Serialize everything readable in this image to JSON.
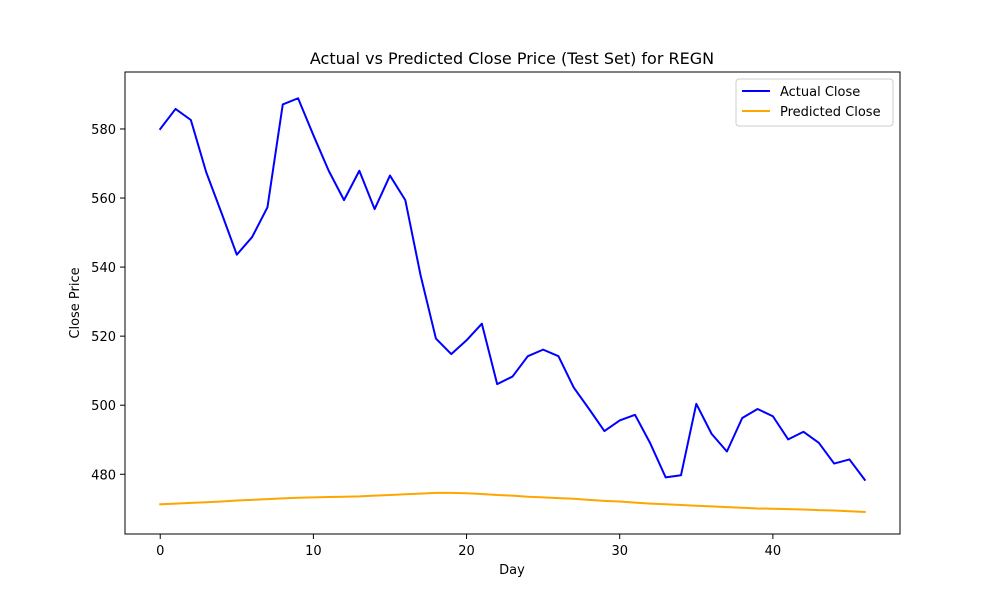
{
  "chart_data": {
    "type": "line",
    "title": "Actual vs Predicted Close Price (Test Set) for REGN",
    "xlabel": "Day",
    "ylabel": "Close Price",
    "xlim": [
      -2.3,
      48.3
    ],
    "ylim": [
      462.7,
      596.5
    ],
    "x_ticks": [
      0,
      10,
      20,
      30,
      40
    ],
    "y_ticks": [
      480,
      500,
      520,
      540,
      560,
      580
    ],
    "grid": false,
    "legend_position": "top-right",
    "x": [
      0,
      1,
      2,
      3,
      4,
      5,
      6,
      7,
      8,
      9,
      10,
      11,
      12,
      13,
      14,
      15,
      16,
      17,
      18,
      19,
      20,
      21,
      22,
      23,
      24,
      25,
      26,
      27,
      28,
      29,
      30,
      31,
      32,
      33,
      34,
      35,
      36,
      37,
      38,
      39,
      40,
      41,
      42,
      43,
      44,
      45,
      46
    ],
    "series": [
      {
        "name": "Actual Close",
        "color": "#0000ff",
        "values": [
          580.0,
          585.8,
          582.6,
          567.5,
          555.7,
          543.6,
          548.7,
          557.3,
          587.1,
          588.9,
          578.2,
          567.9,
          559.4,
          567.9,
          556.8,
          566.5,
          559.4,
          537.6,
          519.3,
          514.8,
          518.8,
          523.6,
          506.1,
          508.3,
          514.2,
          516.1,
          514.2,
          505.1,
          498.9,
          492.5,
          495.6,
          497.2,
          488.9,
          479.1,
          479.7,
          500.4,
          491.7,
          486.6,
          496.3,
          498.9,
          496.8,
          490.1,
          492.3,
          489.1,
          483.1,
          484.3,
          478.4
        ]
      },
      {
        "name": "Predicted Close",
        "color": "#ffa500",
        "values": [
          471.3,
          471.5,
          471.7,
          471.9,
          472.1,
          472.4,
          472.6,
          472.8,
          473.0,
          473.2,
          473.3,
          473.4,
          473.5,
          473.6,
          473.8,
          474.0,
          474.2,
          474.4,
          474.6,
          474.6,
          474.5,
          474.3,
          474.0,
          473.8,
          473.5,
          473.3,
          473.1,
          472.9,
          472.6,
          472.3,
          472.1,
          471.8,
          471.5,
          471.3,
          471.1,
          470.9,
          470.7,
          470.5,
          470.3,
          470.1,
          470.0,
          469.9,
          469.8,
          469.6,
          469.5,
          469.3,
          469.1
        ]
      }
    ]
  }
}
